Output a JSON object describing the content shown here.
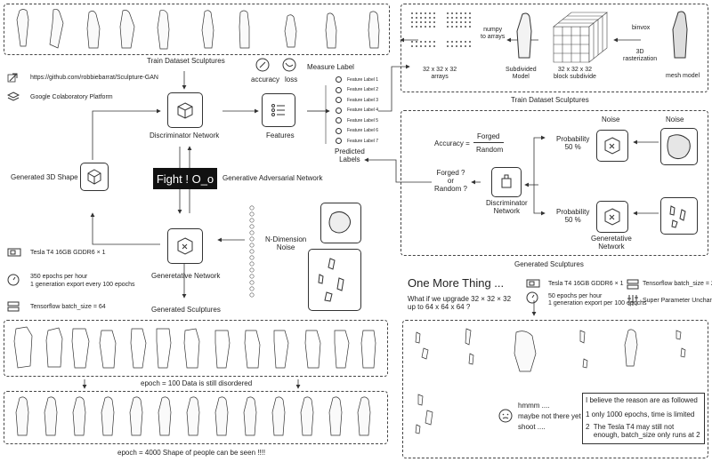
{
  "top_dataset": {
    "label": "Train Dataset Sculptures"
  },
  "links": {
    "github": "https://github.com/robbiebarrat/Sculpture-GAN",
    "colab": "Google Colaboratory Platform"
  },
  "gan": {
    "discriminator": "Discriminator Network",
    "generator": "Generetative Network",
    "features": "Features",
    "accuracy": "accuracy",
    "loss": "loss",
    "measure_label": "Measure Label",
    "predicted_labels": "Predicted\nLabels",
    "feature_labels": [
      "Feature Label 1",
      "Feature Label 2",
      "Feature Label 3",
      "Feature Label 4",
      "Feature Label 5",
      "Feature Label 6",
      "Feature Label 7"
    ],
    "fight": "Fight ! O_o",
    "gan_label": "Generative Adversarial Network",
    "generated_3d": "Generated 3D Shape",
    "noise_label": "N-Dimension\nNoise",
    "generated_sculptures": "Generated Sculptures"
  },
  "specs_left": {
    "gpu": "Tesla T4 16GB GDDR6 × 1",
    "epochs_line1": "350 epochs per hour",
    "epochs_line2": "1 generation export every 100 epochs",
    "batch": "Tensorflow batch_size = 64"
  },
  "pipeline": {
    "arrays_top": "32 x 32 x 32\narrays",
    "numpy": "numpy\nto arrays",
    "subdivided": "Subdivided\nModel",
    "block": "32 x 32 x 32\nblock subdivide",
    "binvox": "binvox",
    "rasterization": "3D\nrasterization",
    "mesh": "mesh model",
    "label": "Train Dataset Sculptures"
  },
  "right_disc": {
    "accuracy_eq": "Accuracy =",
    "forged": "Forged",
    "random": "Random",
    "question": "Forged ?\nor\nRandom ?",
    "disc": "Discriminator\nNetwork",
    "noise_top": "Noise",
    "noise_side": "Noise",
    "prob1": "Probability\n50 %",
    "prob2": "Probability\n50 %",
    "gen": "Generetative\nNetwork",
    "label": "Generated Sculptures"
  },
  "epochs": {
    "e100": "epoch = 100  Data is still disordered",
    "e4000": "epoch = 4000  Shape of people can be seen !!!!"
  },
  "more": {
    "title": "One More Thing ...",
    "question": "What if we upgrade 32 × 32 × 32\nup to 64 x 64 x 64 ?",
    "gpu": "Tesla T4 16GB GDDR6 × 1",
    "epochs": "50 epochs per hour\n1 generation export per 100 epochs",
    "batch": "Tensorflow batch_size = 2",
    "hyper": "Super Parameter Unchanged",
    "hmm1": "hmmm ....",
    "hmm2": "maybe not there yet",
    "hmm3": "shoot ....",
    "reason_title": "I believe the reason are as followed",
    "reason1": "1  only 1000 epochs, time is limited",
    "reason2": "2  The Tesla T4 may still not\n    enough, batch_size only runs at 2"
  },
  "icons": [
    "link-icon",
    "layers-icon",
    "cube-icon",
    "gpu-icon",
    "clock-icon",
    "server-icon",
    "sliders-icon",
    "face-icon",
    "drop-icon"
  ]
}
